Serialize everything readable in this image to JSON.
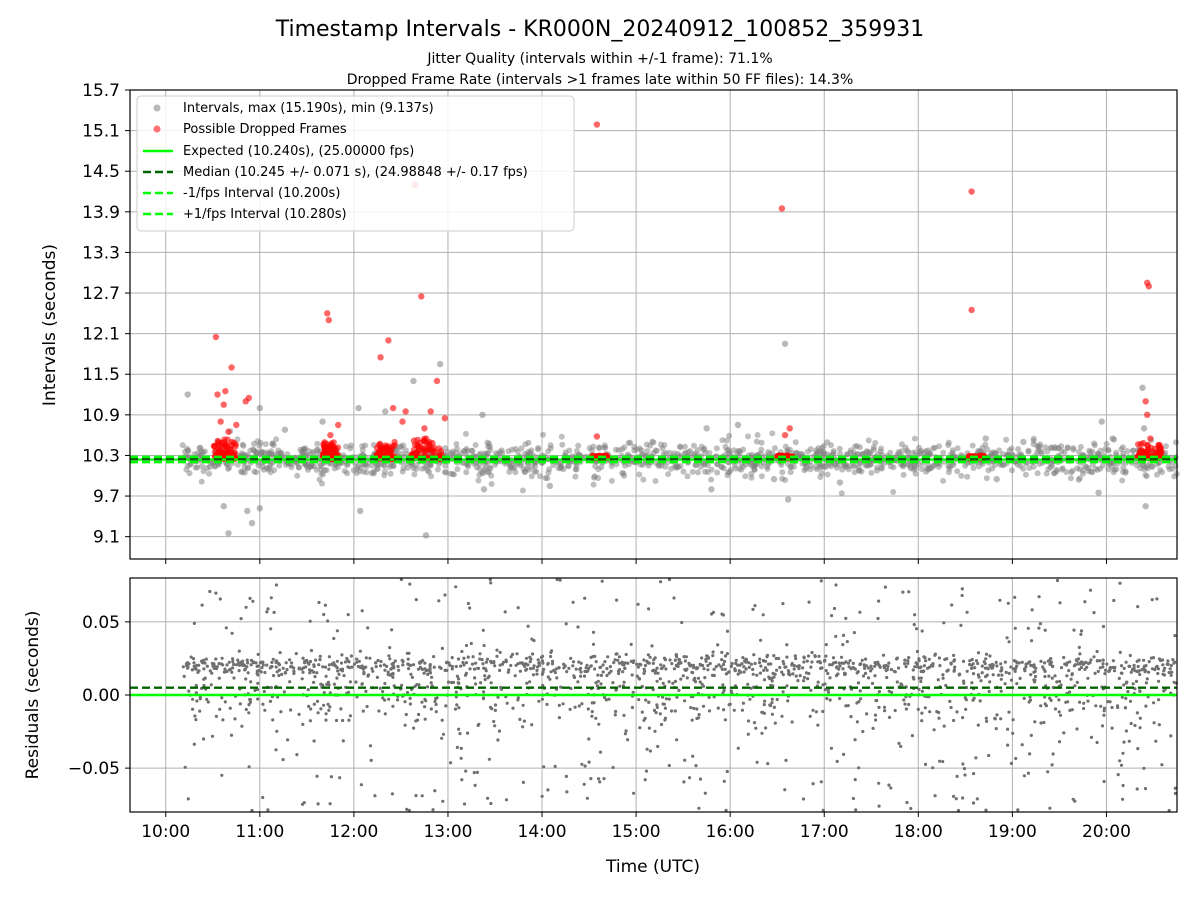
{
  "figure": {
    "title": "Timestamp Intervals - KR000N_20240912_100852_359931",
    "subtitle_1": "Jitter Quality (intervals within +/-1 frame): 71.1%",
    "subtitle_2": "Dropped Frame Rate (intervals >1 frames late within 50 FF files): 14.3%"
  },
  "colors": {
    "intervals": "#808080",
    "dropped": "#ff0000",
    "expected": "#00ff00",
    "median": "#006400",
    "fps_interval": "#00ff00",
    "grid": "#b0b0b0"
  },
  "chart_data": [
    {
      "type": "scatter",
      "xlabel": "",
      "ylabel": "Intervals (seconds)",
      "x_ticks": [
        "10:00",
        "11:00",
        "12:00",
        "13:00",
        "14:00",
        "15:00",
        "16:00",
        "17:00",
        "18:00",
        "19:00",
        "20:00"
      ],
      "xlim_hours": [
        9.62,
        20.75
      ],
      "ylim": [
        8.77,
        15.7
      ],
      "y_ticks": [
        "9.1",
        "9.7",
        "10.3",
        "10.9",
        "11.5",
        "12.1",
        "12.7",
        "13.3",
        "13.9",
        "14.5",
        "15.1",
        "15.7"
      ],
      "grid": true,
      "legend_position": "upper-left",
      "legend": [
        "Intervals, max (15.190s), min (9.137s)",
        "Possible Dropped Frames",
        "Expected (10.240s), (25.00000 fps)",
        "Median (10.245 +/- 0.071 s), (24.98848 +/- 0.17 fps)",
        "-1/fps Interval (10.200s)",
        "+1/fps Interval (10.280s)"
      ],
      "reference_lines": {
        "expected": 10.24,
        "median": 10.245,
        "minus_1fps": 10.2,
        "plus_1fps": 10.28
      },
      "intervals_summary": {
        "max": 15.19,
        "min": 9.137,
        "median": 10.245,
        "std": 0.071,
        "time_range": [
          "10:10",
          "20:45"
        ]
      },
      "intervals_outliers": [
        {
          "t": "10:14",
          "y": 11.2
        },
        {
          "t": "10:33",
          "y": 10.5
        },
        {
          "t": "10:37",
          "y": 9.55
        },
        {
          "t": "10:40",
          "y": 9.15
        },
        {
          "t": "10:52",
          "y": 9.48
        },
        {
          "t": "10:55",
          "y": 9.3
        },
        {
          "t": "11:00",
          "y": 9.52
        },
        {
          "t": "11:00",
          "y": 11.0
        },
        {
          "t": "11:16",
          "y": 10.68
        },
        {
          "t": "11:40",
          "y": 10.8
        },
        {
          "t": "12:03",
          "y": 11.0
        },
        {
          "t": "12:04",
          "y": 9.48
        },
        {
          "t": "12:20",
          "y": 10.95
        },
        {
          "t": "12:38",
          "y": 11.4
        },
        {
          "t": "12:55",
          "y": 11.65
        },
        {
          "t": "12:46",
          "y": 9.12
        },
        {
          "t": "13:22",
          "y": 10.9
        },
        {
          "t": "13:23",
          "y": 9.8
        },
        {
          "t": "14:05",
          "y": 9.85
        },
        {
          "t": "15:45",
          "y": 10.7
        },
        {
          "t": "15:48",
          "y": 9.8
        },
        {
          "t": "16:05",
          "y": 10.75
        },
        {
          "t": "16:28",
          "y": 9.95
        },
        {
          "t": "16:35",
          "y": 11.95
        },
        {
          "t": "16:37",
          "y": 9.65
        },
        {
          "t": "17:10",
          "y": 9.9
        },
        {
          "t": "18:43",
          "y": 10.55
        },
        {
          "t": "18:50",
          "y": 9.95
        },
        {
          "t": "19:07",
          "y": 10.5
        },
        {
          "t": "19:55",
          "y": 9.75
        },
        {
          "t": "19:57",
          "y": 10.8
        },
        {
          "t": "20:04",
          "y": 10.55
        },
        {
          "t": "20:23",
          "y": 11.3
        },
        {
          "t": "20:24",
          "y": 10.7
        },
        {
          "t": "20:25",
          "y": 9.55
        }
      ],
      "dropped_frames": [
        {
          "t": "10:32",
          "y": 12.05
        },
        {
          "t": "10:33",
          "y": 11.2
        },
        {
          "t": "10:38",
          "y": 11.25
        },
        {
          "t": "10:42",
          "y": 11.6
        },
        {
          "t": "10:37",
          "y": 11.05
        },
        {
          "t": "10:53",
          "y": 11.15
        },
        {
          "t": "10:51",
          "y": 11.1
        },
        {
          "t": "10:45",
          "y": 10.75
        },
        {
          "t": "10:40",
          "y": 10.65
        },
        {
          "t": "10:35",
          "y": 10.8
        },
        {
          "t": "11:43",
          "y": 12.4
        },
        {
          "t": "11:44",
          "y": 12.3
        },
        {
          "t": "11:45",
          "y": 10.6
        },
        {
          "t": "11:50",
          "y": 10.75
        },
        {
          "t": "12:17",
          "y": 11.75
        },
        {
          "t": "12:22",
          "y": 12.0
        },
        {
          "t": "12:25",
          "y": 11.0
        },
        {
          "t": "12:31",
          "y": 10.8
        },
        {
          "t": "12:33",
          "y": 10.95
        },
        {
          "t": "12:39",
          "y": 14.3
        },
        {
          "t": "12:43",
          "y": 12.65
        },
        {
          "t": "12:45",
          "y": 10.7
        },
        {
          "t": "12:49",
          "y": 10.95
        },
        {
          "t": "12:53",
          "y": 11.4
        },
        {
          "t": "12:58",
          "y": 10.85
        },
        {
          "t": "14:35",
          "y": 15.19
        },
        {
          "t": "14:35",
          "y": 10.58
        },
        {
          "t": "16:33",
          "y": 13.95
        },
        {
          "t": "16:38",
          "y": 10.7
        },
        {
          "t": "16:35",
          "y": 10.6
        },
        {
          "t": "18:34",
          "y": 14.2
        },
        {
          "t": "18:34",
          "y": 12.45
        },
        {
          "t": "20:26",
          "y": 12.85
        },
        {
          "t": "20:27",
          "y": 12.8
        },
        {
          "t": "20:25",
          "y": 11.1
        },
        {
          "t": "20:26",
          "y": 10.9
        },
        {
          "t": "20:28",
          "y": 10.55
        }
      ],
      "dropped_clusters": [
        {
          "from": "10:30",
          "to": "10:45",
          "y_min": 10.25,
          "y_max": 10.55
        },
        {
          "from": "11:40",
          "to": "11:50",
          "y_min": 10.25,
          "y_max": 10.5
        },
        {
          "from": "12:14",
          "to": "12:26",
          "y_min": 10.25,
          "y_max": 10.5
        },
        {
          "from": "12:36",
          "to": "12:56",
          "y_min": 10.25,
          "y_max": 10.55
        },
        {
          "from": "14:32",
          "to": "14:42",
          "y_min": 10.26,
          "y_max": 10.3
        },
        {
          "from": "16:30",
          "to": "16:40",
          "y_min": 10.26,
          "y_max": 10.3
        },
        {
          "from": "18:32",
          "to": "18:42",
          "y_min": 10.26,
          "y_max": 10.3
        },
        {
          "from": "20:20",
          "to": "20:36",
          "y_min": 10.26,
          "y_max": 10.5
        }
      ]
    },
    {
      "type": "scatter",
      "xlabel": "Time (UTC)",
      "ylabel": "Residuals (seconds)",
      "x_ticks": [
        "10:00",
        "11:00",
        "12:00",
        "13:00",
        "14:00",
        "15:00",
        "16:00",
        "17:00",
        "18:00",
        "19:00",
        "20:00"
      ],
      "xlim_hours": [
        9.62,
        20.75
      ],
      "ylim": [
        -0.08,
        0.08
      ],
      "y_ticks": [
        "−0.05",
        "0.00",
        "0.05"
      ],
      "grid": true,
      "reference_lines": {
        "zero": 0.0,
        "median_offset": 0.005
      },
      "residuals_summary": {
        "dense_band_center": 0.02,
        "spread": 0.08,
        "time_range": [
          "10:10",
          "20:45"
        ]
      }
    }
  ]
}
